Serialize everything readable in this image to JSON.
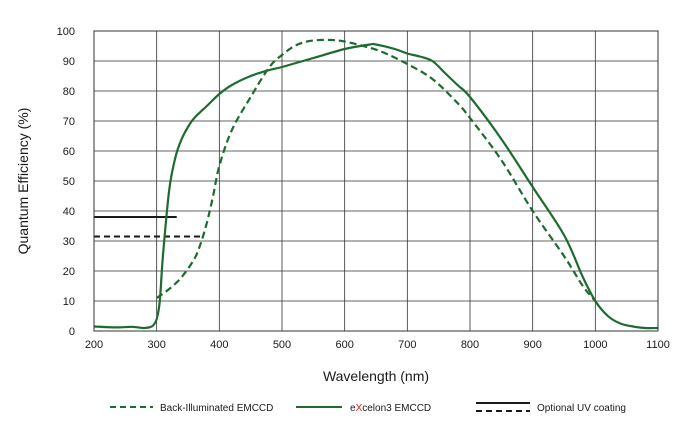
{
  "colors": {
    "series": "#1e6b2e",
    "uv": "#1a1a1a",
    "grid": "#333333",
    "accent_letter": "#e02020"
  },
  "chart_data": {
    "type": "line",
    "xlabel": "Wavelength (nm)",
    "ylabel": "Quantum Efficiency (%)",
    "xlim": [
      200,
      1100
    ],
    "ylim": [
      0,
      100
    ],
    "xticks": [
      200,
      300,
      400,
      500,
      600,
      700,
      800,
      900,
      1000,
      1100
    ],
    "yticks": [
      0,
      10,
      20,
      30,
      40,
      50,
      60,
      70,
      80,
      90,
      100
    ],
    "grid": true,
    "legend_position": "bottom",
    "series": [
      {
        "name": "Back-Illuminated EMCCD",
        "style": "dashed",
        "points": [
          [
            300,
            11
          ],
          [
            320,
            14
          ],
          [
            340,
            18
          ],
          [
            360,
            24
          ],
          [
            370,
            29
          ],
          [
            380,
            36
          ],
          [
            390,
            45
          ],
          [
            400,
            55
          ],
          [
            420,
            67
          ],
          [
            450,
            78
          ],
          [
            480,
            88
          ],
          [
            500,
            92
          ],
          [
            520,
            95
          ],
          [
            540,
            96.5
          ],
          [
            560,
            97
          ],
          [
            580,
            97
          ],
          [
            600,
            96.5
          ],
          [
            630,
            95
          ],
          [
            660,
            93
          ],
          [
            700,
            89
          ],
          [
            740,
            84
          ],
          [
            780,
            76
          ],
          [
            800,
            71
          ],
          [
            850,
            57
          ],
          [
            900,
            40
          ],
          [
            950,
            25
          ],
          [
            980,
            15
          ],
          [
            1000,
            10
          ]
        ]
      },
      {
        "name_prefix": "e",
        "name_accent": "X",
        "name_suffix": "celon3  EMCCD",
        "style": "solid",
        "points": [
          [
            200,
            1.5
          ],
          [
            220,
            1.3
          ],
          [
            240,
            1.2
          ],
          [
            260,
            1.4
          ],
          [
            270,
            1.2
          ],
          [
            280,
            1
          ],
          [
            290,
            1.3
          ],
          [
            295,
            2
          ],
          [
            300,
            4
          ],
          [
            305,
            10
          ],
          [
            310,
            25
          ],
          [
            320,
            47
          ],
          [
            330,
            58
          ],
          [
            340,
            64
          ],
          [
            350,
            68
          ],
          [
            360,
            71
          ],
          [
            380,
            75
          ],
          [
            400,
            79
          ],
          [
            420,
            82
          ],
          [
            450,
            85
          ],
          [
            480,
            87
          ],
          [
            500,
            88
          ],
          [
            550,
            91
          ],
          [
            600,
            94
          ],
          [
            640,
            95.5
          ],
          [
            650,
            95.5
          ],
          [
            680,
            94
          ],
          [
            700,
            92.5
          ],
          [
            720,
            91.5
          ],
          [
            740,
            90
          ],
          [
            760,
            86
          ],
          [
            780,
            82
          ],
          [
            800,
            78
          ],
          [
            850,
            64
          ],
          [
            900,
            48
          ],
          [
            950,
            32
          ],
          [
            980,
            18
          ],
          [
            1000,
            10
          ],
          [
            1020,
            5
          ],
          [
            1040,
            2.5
          ],
          [
            1060,
            1.5
          ],
          [
            1080,
            1
          ],
          [
            1100,
            1
          ]
        ]
      }
    ],
    "uv_coating": {
      "name": "Optional UV coating",
      "solid": {
        "y": 38,
        "x": [
          200,
          332
        ]
      },
      "dashed": {
        "y": 31.5,
        "x": [
          200,
          370
        ]
      }
    }
  }
}
